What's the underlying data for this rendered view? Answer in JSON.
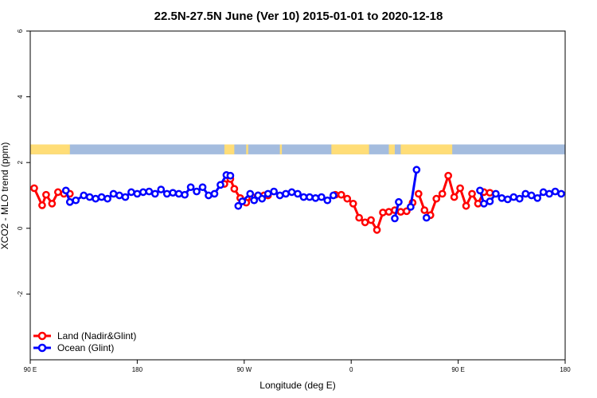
{
  "chart_data": {
    "type": "line",
    "title": "22.5N-27.5N June (Ver 10)   2015-01-01 to 2020-12-18",
    "xlabel": "Longitude (deg E)",
    "ylabel": "XCO2 - MLO trend (ppm)",
    "xlim": [
      -90,
      180
    ],
    "ylim": [
      -4,
      6
    ],
    "grid": false,
    "legend_position": "bottom-left",
    "x_ticks": [
      {
        "value": -90,
        "label": "90 E"
      },
      {
        "value": -36,
        "label": "180"
      },
      {
        "value": 18,
        "label": "90 W"
      },
      {
        "value": 72,
        "label": "0"
      },
      {
        "value": 126,
        "label": "90 E"
      },
      {
        "value": 180,
        "label": "180"
      }
    ],
    "y_ticks": [
      {
        "value": -2,
        "label": "-2"
      },
      {
        "value": 0,
        "label": "0"
      },
      {
        "value": 2,
        "label": "2"
      },
      {
        "value": 4,
        "label": "4"
      },
      {
        "value": 6,
        "label": "6"
      }
    ],
    "colors": {
      "land": "#ff0000",
      "ocean": "#0000ff",
      "land_strip": "#ffdd77",
      "water_strip": "#a4bcde"
    },
    "land_strip_segments": [
      [
        -90,
        -70
      ],
      [
        8,
        13
      ],
      [
        19,
        20
      ],
      [
        36,
        37
      ],
      [
        62,
        81
      ],
      [
        91,
        94
      ],
      [
        97,
        123
      ]
    ],
    "series": [
      {
        "name": "Land (Nadir&Glint)",
        "color": "#ff0000",
        "segments": [
          {
            "x": [
              -88,
              -84,
              -82,
              -79,
              -76,
              -73,
              -70
            ],
            "y": [
              1.22,
              0.7,
              1.02,
              0.75,
              1.1,
              1.05,
              1.05
            ]
          },
          {
            "x": [
              8,
              11,
              13,
              16,
              19,
              22,
              25,
              28,
              30
            ],
            "y": [
              1.35,
              1.5,
              1.2,
              0.92,
              0.78,
              0.95,
              1.0,
              1.0,
              1.0
            ]
          },
          {
            "x": [
              64,
              67
            ],
            "y": [
              1.02,
              1.02
            ]
          },
          {
            "x": [
              70,
              73,
              76,
              79,
              82,
              85,
              88,
              91,
              94,
              97,
              100,
              103
            ],
            "y": [
              0.9,
              0.75,
              0.32,
              0.18,
              0.25,
              -0.05,
              0.48,
              0.5,
              0.55,
              0.5,
              0.52,
              0.78
            ]
          },
          {
            "x": [
              106,
              109,
              112,
              115,
              118,
              121,
              124,
              127,
              130,
              133,
              136,
              139,
              142
            ],
            "y": [
              1.05,
              0.55,
              0.4,
              0.9,
              1.05,
              1.6,
              0.95,
              1.22,
              0.68,
              1.05,
              0.75,
              1.1,
              1.08
            ]
          }
        ]
      },
      {
        "name": "Ocean (Glint)",
        "color": "#0000ff",
        "segments": [
          {
            "x": [
              -72,
              -70,
              -67,
              -63,
              -60,
              -57,
              -54,
              -51,
              -48,
              -45,
              -42,
              -39,
              -36,
              -33,
              -30,
              -27,
              -24,
              -21,
              -18,
              -15,
              -12,
              -9,
              -6,
              -3,
              0,
              3,
              6,
              9,
              11
            ],
            "y": [
              1.15,
              0.8,
              0.85,
              1.0,
              0.95,
              0.9,
              0.95,
              0.9,
              1.05,
              1.0,
              0.95,
              1.1,
              1.05,
              1.1,
              1.12,
              1.05,
              1.18,
              1.05,
              1.08,
              1.05,
              1.02,
              1.25,
              1.12,
              1.25,
              1.0,
              1.05,
              1.32,
              1.62,
              1.6
            ]
          },
          {
            "x": [
              15,
              17,
              21,
              23,
              25,
              27,
              30,
              33,
              36,
              39,
              42,
              45,
              48,
              51,
              54,
              57,
              60,
              63
            ],
            "y": [
              0.68,
              0.82,
              1.05,
              0.85,
              1.0,
              0.9,
              1.05,
              1.12,
              1.0,
              1.05,
              1.1,
              1.05,
              0.95,
              0.95,
              0.92,
              0.95,
              0.85,
              1.0
            ]
          },
          {
            "x": [
              94,
              96
            ],
            "y": [
              0.3,
              0.8
            ]
          },
          {
            "x": [
              102,
              105
            ],
            "y": [
              0.65,
              1.78
            ]
          },
          {
            "x": [
              110
            ],
            "y": [
              0.32
            ]
          },
          {
            "x": [
              137,
              139,
              142,
              145,
              148,
              151,
              154,
              157,
              160,
              163,
              166,
              169,
              172,
              175,
              178
            ],
            "y": [
              1.15,
              0.75,
              0.82,
              1.05,
              0.92,
              0.88,
              0.95,
              0.9,
              1.05,
              1.0,
              0.92,
              1.1,
              1.05,
              1.12,
              1.05
            ]
          }
        ]
      }
    ]
  }
}
